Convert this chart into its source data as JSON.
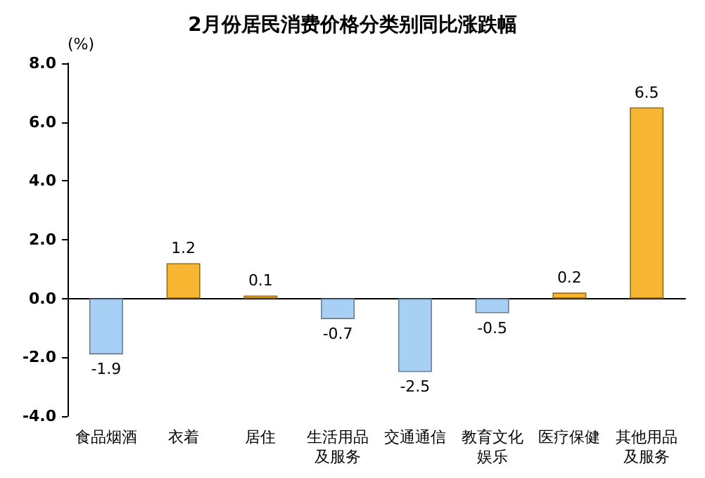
{
  "chart_data": {
    "type": "bar",
    "title": "2月份居民消费价格分类别同比涨跌幅",
    "ylabel": "(%)",
    "categories": [
      "食品烟酒",
      "衣着",
      "居住",
      "生活用品及服务",
      "交通通信",
      "教育文化娱乐",
      "医疗保健",
      "其他用品及服务"
    ],
    "values": [
      -1.9,
      1.2,
      0.1,
      -0.7,
      -2.5,
      -0.5,
      0.2,
      6.5
    ],
    "colors": [
      "#a8d0f5",
      "#f7b733",
      "#f7b733",
      "#a8d0f5",
      "#a8d0f5",
      "#a8d0f5",
      "#f7b733",
      "#f7b733"
    ],
    "ylim": [
      -4,
      8
    ],
    "yticks": [
      {
        "value": -4,
        "label": "-4.0"
      },
      {
        "value": -2,
        "label": "-2.0"
      },
      {
        "value": 0,
        "label": "0.0"
      },
      {
        "value": 2,
        "label": "2.0"
      },
      {
        "value": 4,
        "label": "4.0"
      },
      {
        "value": 6,
        "label": "6.0"
      },
      {
        "value": 8,
        "label": "8.0"
      }
    ],
    "data_labels": true
  }
}
